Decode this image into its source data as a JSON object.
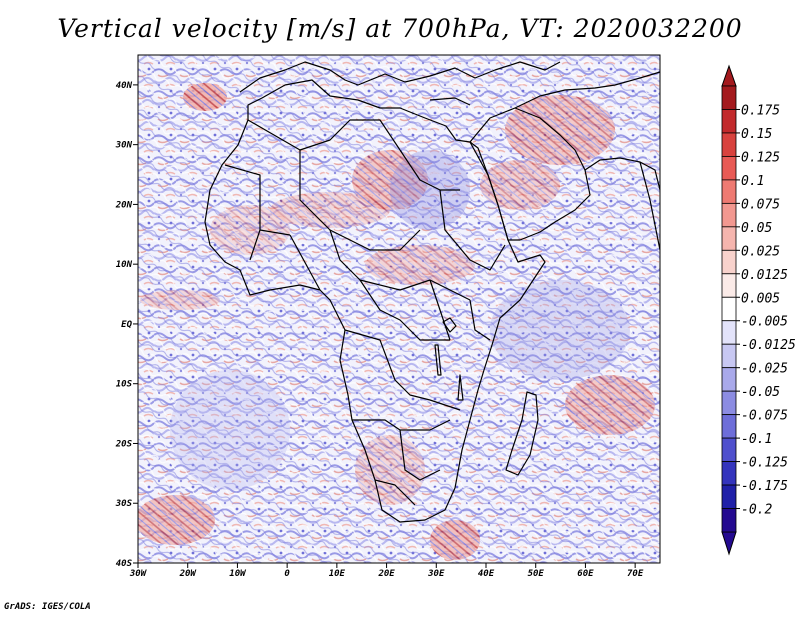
{
  "title": "Vertical velocity [m/s] at 700hPa, VT: 2020032200",
  "credit": "GrADS: IGES/COLA",
  "map": {
    "lon_range": [
      -30,
      75
    ],
    "lat_range": [
      -40,
      45
    ],
    "x_ticks": [
      "30W",
      "20W",
      "10W",
      "0",
      "10E",
      "20E",
      "30E",
      "40E",
      "50E",
      "60E",
      "70E"
    ],
    "y_ticks": [
      "40N",
      "30N",
      "20N",
      "10N",
      "EQ",
      "10S",
      "20S",
      "30S",
      "40S"
    ]
  },
  "colorbar": {
    "labels": [
      "0.175",
      "0.15",
      "0.125",
      "0.1",
      "0.075",
      "0.05",
      "0.025",
      "0.0125",
      "0.005",
      "-0.005",
      "-0.0125",
      "-0.025",
      "-0.05",
      "-0.075",
      "-0.1",
      "-0.125",
      "-0.175",
      "-0.2"
    ],
    "colors": [
      "#a41a1e",
      "#c22a2c",
      "#d8423e",
      "#e85a55",
      "#ee7a72",
      "#f29890",
      "#f5b5ae",
      "#f8d2cc",
      "#fbebe8",
      "#ffffff",
      "#e3e3fa",
      "#c8c8f2",
      "#a9a9ea",
      "#8c8ce2",
      "#6e6ed9",
      "#5050cd",
      "#3434bd",
      "#2020a8",
      "#240a90"
    ]
  }
}
